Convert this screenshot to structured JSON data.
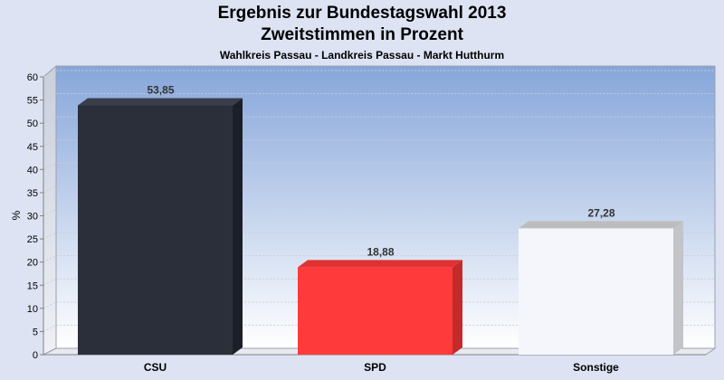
{
  "title": "Ergebnis zur Bundestagswahl 2013",
  "subtitle": "Zweitstimmen in Prozent",
  "subsubtitle": "Wahlkreis Passau - Landkreis Passau - Markt Hutthurm",
  "chart_data": {
    "type": "bar",
    "categories": [
      "CSU",
      "SPD",
      "Sonstige"
    ],
    "values": [
      53.85,
      18.88,
      27.28
    ],
    "value_labels": [
      "53,85",
      "18,88",
      "27,28"
    ],
    "colors": [
      "#2b2f3a",
      "#ff3a3a",
      "#f4f6fb"
    ],
    "side_colors": [
      "#1c1f27",
      "#c42a2a",
      "#c2c4c8"
    ],
    "top_colors": [
      "#3a3e4a",
      "#e03232",
      "#bdbdbd"
    ],
    "ylabel": "%",
    "ylim": [
      0,
      60
    ],
    "yticks": [
      0,
      5,
      10,
      15,
      20,
      25,
      30,
      35,
      40,
      45,
      50,
      55,
      60
    ],
    "grid": true,
    "legend": "none"
  }
}
